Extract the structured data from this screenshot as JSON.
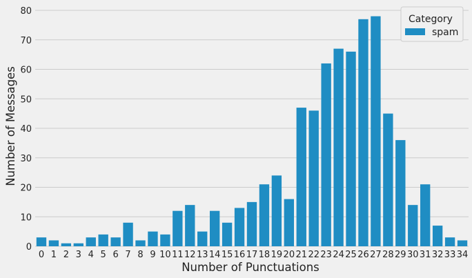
{
  "chart_data": {
    "type": "bar",
    "categories": [
      "0",
      "1",
      "2",
      "3",
      "4",
      "5",
      "6",
      "7",
      "8",
      "9",
      "10",
      "11",
      "12",
      "13",
      "14",
      "15",
      "16",
      "17",
      "18",
      "19",
      "20",
      "21",
      "22",
      "23",
      "24",
      "25",
      "26",
      "27",
      "28",
      "29",
      "30",
      "31",
      "32",
      "33",
      "34"
    ],
    "series": [
      {
        "name": "spam",
        "values": [
          3,
          2,
          1,
          1,
          3,
          4,
          3,
          8,
          2,
          5,
          4,
          12,
          14,
          5,
          12,
          8,
          13,
          15,
          21,
          24,
          16,
          47,
          46,
          62,
          67,
          66,
          77,
          78,
          45,
          36,
          14,
          21,
          7,
          3,
          2
        ]
      }
    ],
    "xlabel": "Number of Punctuations",
    "ylabel": "Number of Messages",
    "ylim": [
      0,
      80
    ],
    "yticks": [
      0,
      10,
      20,
      30,
      40,
      50,
      60,
      70,
      80
    ],
    "grid": "horizontal",
    "legend": {
      "title": "Category",
      "placement": "top-right"
    },
    "colors": {
      "bar": "#1f8dc3",
      "background": "#f0f0f0",
      "grid": "#cbcbcb"
    }
  }
}
